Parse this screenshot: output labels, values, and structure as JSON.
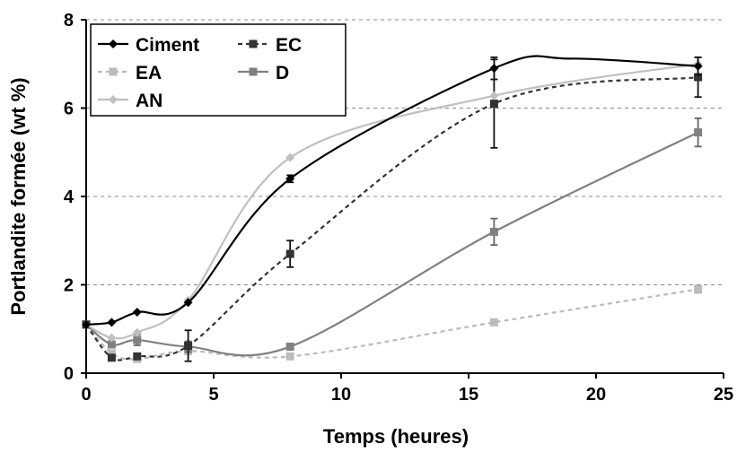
{
  "chart_data": {
    "type": "line",
    "xlabel": "Temps (heures)",
    "ylabel": "Portlandite formée (wt %)",
    "xlim": [
      0,
      25
    ],
    "ylim": [
      0,
      8
    ],
    "x_ticks": [
      0,
      5,
      10,
      15,
      20,
      25
    ],
    "y_ticks": [
      0,
      2,
      4,
      6,
      8
    ],
    "grid": "horizontal dashed",
    "legend_position": "top-left",
    "series": [
      {
        "name": "Ciment",
        "color": "#000000",
        "line_style": "solid",
        "marker": "diamond",
        "x": [
          0,
          1,
          2,
          4,
          8,
          16,
          24
        ],
        "y": [
          1.1,
          1.15,
          1.38,
          1.6,
          4.4,
          6.9,
          6.95
        ],
        "err": [
          0,
          0,
          0,
          0,
          0.08,
          0.25,
          0.2
        ],
        "smooth_extra": [
          [
            19,
            7.12
          ]
        ]
      },
      {
        "name": "EC",
        "color": "#333333",
        "line_style": "dashed",
        "marker": "square",
        "x": [
          0,
          1,
          2,
          4,
          8,
          16,
          24
        ],
        "y": [
          1.1,
          0.35,
          0.38,
          0.62,
          2.7,
          6.1,
          6.7
        ],
        "err": [
          0,
          0,
          0,
          0.35,
          0.3,
          1.0,
          0.45
        ]
      },
      {
        "name": "EA",
        "color": "#bbbbbb",
        "line_style": "dashed",
        "marker": "square",
        "x": [
          0,
          1,
          2,
          4,
          8,
          16,
          24
        ],
        "y": [
          1.1,
          0.45,
          0.32,
          0.5,
          0.38,
          1.15,
          1.9
        ],
        "err": [
          0,
          0,
          0,
          0,
          0,
          0,
          0.08
        ]
      },
      {
        "name": "D",
        "color": "#808080",
        "line_style": "solid",
        "marker": "square",
        "x": [
          0,
          1,
          2,
          4,
          8,
          16,
          24
        ],
        "y": [
          1.1,
          0.65,
          0.75,
          0.6,
          0.6,
          3.2,
          5.45
        ],
        "err": [
          0,
          0,
          0.12,
          0.12,
          0,
          0.3,
          0.32
        ]
      },
      {
        "name": "AN",
        "color": "#c0c0c0",
        "line_style": "solid",
        "marker": "diamond",
        "x": [
          0,
          1,
          2,
          4,
          8,
          16,
          24
        ],
        "y": [
          1.1,
          0.8,
          0.92,
          1.65,
          4.88,
          6.28,
          7.0
        ],
        "err": [
          0,
          0,
          0,
          0,
          0,
          0,
          0
        ]
      }
    ]
  }
}
